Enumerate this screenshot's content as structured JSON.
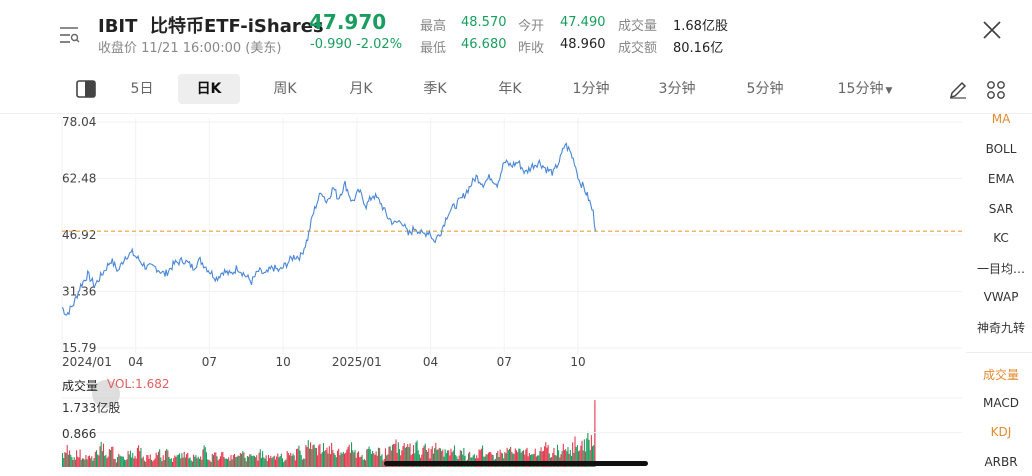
{
  "header": {
    "symbol": "IBIT",
    "name": "比特币ETF-iShares",
    "price": "47.970",
    "close_time": "收盘价 11/21 16:00:00 (美东)",
    "change": "-0.990",
    "change_pct": "-2.02%",
    "stats": [
      {
        "label": "最高",
        "value": "48.570",
        "color": "green"
      },
      {
        "label": "今开",
        "value": "47.490",
        "color": "green"
      },
      {
        "label": "成交量",
        "value": "1.68亿股",
        "color": "dark"
      },
      {
        "label": "最低",
        "value": "46.680",
        "color": "green"
      },
      {
        "label": "昨收",
        "value": "48.960",
        "color": "dark"
      },
      {
        "label": "成交额",
        "value": "80.16亿",
        "color": "dark"
      }
    ]
  },
  "tabs": [
    "5日",
    "日K",
    "周K",
    "月K",
    "季K",
    "年K",
    "1分钟",
    "3分钟",
    "5分钟",
    "15分钟"
  ],
  "active_tab": "日K",
  "indicators_main": [
    "MA",
    "BOLL",
    "EMA",
    "SAR",
    "KC",
    "一目均…",
    "VWAP",
    "神奇九转"
  ],
  "indicators_sub": [
    "成交量",
    "MACD",
    "KDJ",
    "ARBR"
  ],
  "volume": {
    "label": "成交量",
    "vol_text": "VOL:1.682",
    "max_label": "1.733亿股",
    "mid_label": "0.866"
  },
  "colors": {
    "up": "#e23b4e",
    "down": "#1a9e5f",
    "line": "#4a87d6",
    "ref": "#e8a13a",
    "accent": "#e38a2f"
  },
  "chart_data": {
    "type": "line",
    "y_ticks": [
      "78.04",
      "62.48",
      "46.92",
      "31.36",
      "15.79"
    ],
    "x_ticks": [
      "2024/01",
      "04",
      "07",
      "10",
      "2025/01",
      "04",
      "07",
      "10"
    ],
    "ylim": [
      15.79,
      78.04
    ],
    "ref_value": 47.97,
    "points_per_month": 21,
    "anchors": [
      [
        0,
        27
      ],
      [
        4,
        25
      ],
      [
        10,
        28
      ],
      [
        16,
        33
      ],
      [
        22,
        36
      ],
      [
        28,
        33
      ],
      [
        36,
        37
      ],
      [
        42,
        40
      ],
      [
        48,
        37
      ],
      [
        54,
        41
      ],
      [
        60,
        42
      ],
      [
        66,
        40
      ],
      [
        72,
        38
      ],
      [
        80,
        38
      ],
      [
        88,
        36
      ],
      [
        96,
        39
      ],
      [
        104,
        40
      ],
      [
        112,
        38
      ],
      [
        118,
        40
      ],
      [
        126,
        37
      ],
      [
        132,
        35
      ],
      [
        138,
        37
      ],
      [
        144,
        36
      ],
      [
        150,
        38
      ],
      [
        156,
        36
      ],
      [
        162,
        34
      ],
      [
        168,
        37
      ],
      [
        174,
        36
      ],
      [
        180,
        38
      ],
      [
        186,
        37
      ],
      [
        192,
        39
      ],
      [
        198,
        41
      ],
      [
        204,
        41
      ],
      [
        210,
        46
      ],
      [
        214,
        52
      ],
      [
        218,
        56
      ],
      [
        222,
        59
      ],
      [
        226,
        56
      ],
      [
        232,
        60
      ],
      [
        236,
        57
      ],
      [
        242,
        61
      ],
      [
        248,
        56
      ],
      [
        254,
        59
      ],
      [
        260,
        55
      ],
      [
        266,
        58
      ],
      [
        272,
        56
      ],
      [
        278,
        52
      ],
      [
        284,
        50
      ],
      [
        290,
        51
      ],
      [
        296,
        47
      ],
      [
        302,
        49
      ],
      [
        308,
        47
      ],
      [
        314,
        48
      ],
      [
        318,
        45
      ],
      [
        324,
        48
      ],
      [
        330,
        53
      ],
      [
        336,
        55
      ],
      [
        342,
        57
      ],
      [
        348,
        60
      ],
      [
        354,
        63
      ],
      [
        360,
        61
      ],
      [
        366,
        63
      ],
      [
        372,
        61
      ],
      [
        378,
        67
      ],
      [
        384,
        66
      ],
      [
        390,
        67
      ],
      [
        396,
        64
      ],
      [
        402,
        66
      ],
      [
        408,
        67
      ],
      [
        414,
        65
      ],
      [
        420,
        64
      ],
      [
        426,
        68
      ],
      [
        430,
        72
      ],
      [
        434,
        70
      ],
      [
        438,
        67
      ],
      [
        442,
        62
      ],
      [
        446,
        60
      ],
      [
        450,
        57
      ],
      [
        454,
        53
      ],
      [
        456,
        48
      ]
    ],
    "volume_max": 1.733,
    "volume_bars": [
      {
        "i": 0,
        "v": 0.35,
        "up": false
      },
      {
        "i": 4,
        "v": 0.55,
        "up": true
      },
      {
        "i": 8,
        "v": 0.25,
        "up": false
      },
      {
        "i": 12,
        "v": 0.42,
        "up": true
      },
      {
        "i": 16,
        "v": 0.18,
        "up": false
      },
      {
        "i": 20,
        "v": 0.3,
        "up": true
      },
      {
        "i": 24,
        "v": 0.22,
        "up": false
      },
      {
        "i": 28,
        "v": 0.38,
        "up": true
      },
      {
        "i": 32,
        "v": 0.52,
        "up": true
      },
      {
        "i": 36,
        "v": 0.28,
        "up": false
      },
      {
        "i": 40,
        "v": 0.45,
        "up": true
      },
      {
        "i": 44,
        "v": 0.2,
        "up": false
      },
      {
        "i": 48,
        "v": 0.33,
        "up": true
      },
      {
        "i": 52,
        "v": 0.26,
        "up": false
      },
      {
        "i": 56,
        "v": 0.4,
        "up": true
      },
      {
        "i": 60,
        "v": 0.35,
        "up": false
      },
      {
        "i": 64,
        "v": 0.48,
        "up": true
      },
      {
        "i": 68,
        "v": 0.22,
        "up": false
      },
      {
        "i": 72,
        "v": 0.3,
        "up": true
      },
      {
        "i": 76,
        "v": 0.18,
        "up": false
      },
      {
        "i": 80,
        "v": 0.36,
        "up": true
      },
      {
        "i": 84,
        "v": 0.24,
        "up": false
      },
      {
        "i": 88,
        "v": 0.41,
        "up": true
      },
      {
        "i": 92,
        "v": 0.2,
        "up": false
      },
      {
        "i": 96,
        "v": 0.29,
        "up": true
      },
      {
        "i": 100,
        "v": 0.34,
        "up": false
      },
      {
        "i": 104,
        "v": 0.38,
        "up": true
      },
      {
        "i": 108,
        "v": 0.22,
        "up": false
      },
      {
        "i": 112,
        "v": 0.31,
        "up": true
      },
      {
        "i": 116,
        "v": 0.26,
        "up": false
      },
      {
        "i": 120,
        "v": 0.44,
        "up": true
      },
      {
        "i": 124,
        "v": 0.19,
        "up": false
      },
      {
        "i": 128,
        "v": 0.33,
        "up": true
      },
      {
        "i": 132,
        "v": 0.27,
        "up": false
      },
      {
        "i": 136,
        "v": 0.37,
        "up": true
      },
      {
        "i": 140,
        "v": 0.21,
        "up": false
      },
      {
        "i": 144,
        "v": 0.3,
        "up": true
      },
      {
        "i": 148,
        "v": 0.25,
        "up": false
      },
      {
        "i": 152,
        "v": 0.35,
        "up": true
      },
      {
        "i": 156,
        "v": 0.23,
        "up": false
      },
      {
        "i": 160,
        "v": 0.32,
        "up": true
      },
      {
        "i": 164,
        "v": 0.28,
        "up": false
      },
      {
        "i": 168,
        "v": 0.36,
        "up": true
      },
      {
        "i": 172,
        "v": 0.24,
        "up": false
      },
      {
        "i": 176,
        "v": 0.3,
        "up": true
      },
      {
        "i": 180,
        "v": 0.26,
        "up": false
      },
      {
        "i": 184,
        "v": 0.34,
        "up": true
      },
      {
        "i": 188,
        "v": 0.22,
        "up": false
      },
      {
        "i": 192,
        "v": 0.4,
        "up": true
      },
      {
        "i": 196,
        "v": 0.28,
        "up": false
      },
      {
        "i": 200,
        "v": 0.45,
        "up": true
      },
      {
        "i": 204,
        "v": 0.3,
        "up": false
      },
      {
        "i": 208,
        "v": 0.55,
        "up": true
      },
      {
        "i": 212,
        "v": 0.62,
        "up": true
      },
      {
        "i": 216,
        "v": 0.48,
        "up": false
      },
      {
        "i": 220,
        "v": 0.58,
        "up": true
      },
      {
        "i": 224,
        "v": 0.4,
        "up": false
      },
      {
        "i": 228,
        "v": 0.52,
        "up": true
      },
      {
        "i": 232,
        "v": 0.35,
        "up": false
      },
      {
        "i": 236,
        "v": 0.46,
        "up": true
      },
      {
        "i": 240,
        "v": 0.38,
        "up": false
      },
      {
        "i": 244,
        "v": 0.5,
        "up": true
      },
      {
        "i": 248,
        "v": 0.42,
        "up": false
      },
      {
        "i": 252,
        "v": 0.36,
        "up": true
      },
      {
        "i": 256,
        "v": 0.3,
        "up": false
      },
      {
        "i": 260,
        "v": 0.44,
        "up": true
      },
      {
        "i": 264,
        "v": 0.33,
        "up": false
      },
      {
        "i": 268,
        "v": 0.39,
        "up": true
      },
      {
        "i": 272,
        "v": 0.28,
        "up": false
      },
      {
        "i": 276,
        "v": 0.47,
        "up": true
      },
      {
        "i": 280,
        "v": 0.52,
        "up": false
      },
      {
        "i": 284,
        "v": 0.58,
        "up": true
      },
      {
        "i": 288,
        "v": 0.45,
        "up": false
      },
      {
        "i": 292,
        "v": 0.6,
        "up": true
      },
      {
        "i": 296,
        "v": 0.5,
        "up": false
      },
      {
        "i": 300,
        "v": 0.55,
        "up": true
      },
      {
        "i": 304,
        "v": 0.42,
        "up": false
      },
      {
        "i": 308,
        "v": 0.48,
        "up": true
      },
      {
        "i": 312,
        "v": 0.38,
        "up": false
      },
      {
        "i": 316,
        "v": 0.52,
        "up": true
      },
      {
        "i": 320,
        "v": 0.44,
        "up": false
      },
      {
        "i": 324,
        "v": 0.4,
        "up": true
      },
      {
        "i": 328,
        "v": 0.35,
        "up": false
      },
      {
        "i": 332,
        "v": 0.46,
        "up": true
      },
      {
        "i": 336,
        "v": 0.3,
        "up": false
      },
      {
        "i": 340,
        "v": 0.42,
        "up": true
      },
      {
        "i": 344,
        "v": 0.28,
        "up": false
      },
      {
        "i": 348,
        "v": 0.38,
        "up": true
      },
      {
        "i": 352,
        "v": 0.32,
        "up": false
      },
      {
        "i": 356,
        "v": 0.44,
        "up": true
      },
      {
        "i": 360,
        "v": 0.26,
        "up": false
      },
      {
        "i": 364,
        "v": 0.36,
        "up": true
      },
      {
        "i": 368,
        "v": 0.3,
        "up": false
      },
      {
        "i": 372,
        "v": 0.4,
        "up": true
      },
      {
        "i": 376,
        "v": 0.34,
        "up": false
      },
      {
        "i": 380,
        "v": 0.48,
        "up": true
      },
      {
        "i": 384,
        "v": 0.38,
        "up": false
      },
      {
        "i": 388,
        "v": 0.42,
        "up": true
      },
      {
        "i": 392,
        "v": 0.36,
        "up": false
      },
      {
        "i": 396,
        "v": 0.44,
        "up": true
      },
      {
        "i": 400,
        "v": 0.3,
        "up": false
      },
      {
        "i": 404,
        "v": 0.46,
        "up": true
      },
      {
        "i": 408,
        "v": 0.4,
        "up": false
      },
      {
        "i": 412,
        "v": 0.52,
        "up": true
      },
      {
        "i": 416,
        "v": 0.34,
        "up": false
      },
      {
        "i": 420,
        "v": 0.48,
        "up": true
      },
      {
        "i": 424,
        "v": 0.42,
        "up": false
      },
      {
        "i": 428,
        "v": 0.58,
        "up": true
      },
      {
        "i": 432,
        "v": 0.5,
        "up": false
      },
      {
        "i": 436,
        "v": 0.62,
        "up": true
      },
      {
        "i": 440,
        "v": 0.55,
        "up": false
      },
      {
        "i": 444,
        "v": 0.66,
        "up": true
      },
      {
        "i": 448,
        "v": 0.72,
        "up": false
      },
      {
        "i": 452,
        "v": 0.8,
        "up": true
      },
      {
        "i": 455,
        "v": 1.68,
        "up": true
      }
    ]
  }
}
